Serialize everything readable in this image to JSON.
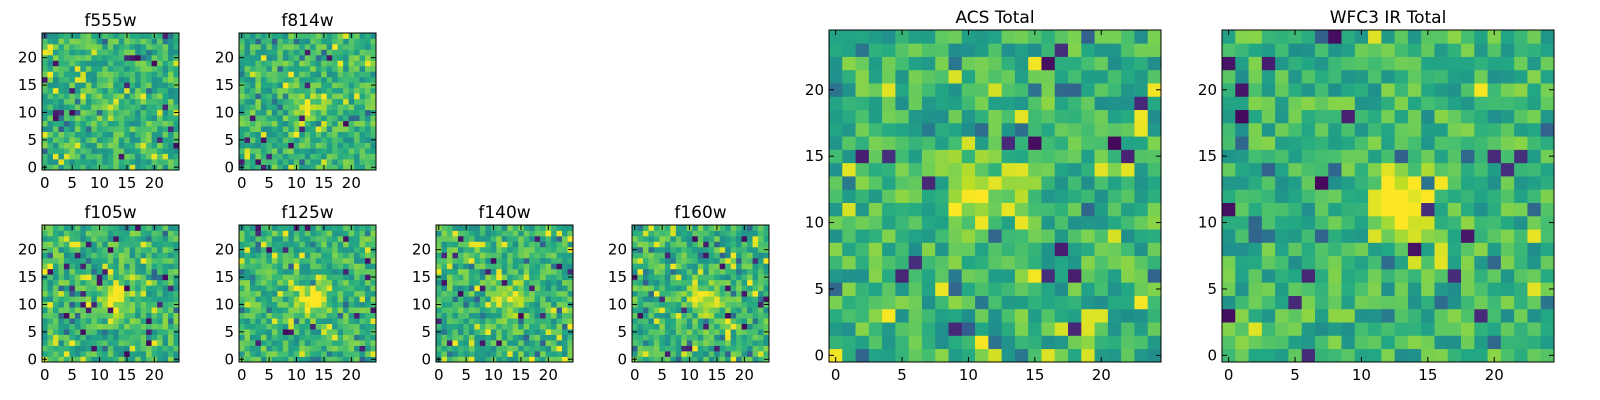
{
  "figure": {
    "description_colormap": "viridis"
  },
  "chart_data": [
    {
      "type": "heatmap",
      "title": "f555w",
      "xlabel": "",
      "ylabel": "",
      "grid_size": 25,
      "xlim": [
        0,
        24
      ],
      "ylim": [
        0,
        24
      ],
      "x_ticks": [
        0,
        5,
        10,
        15,
        20
      ],
      "y_ticks": [
        0,
        5,
        10,
        15,
        20
      ],
      "x_tick_labels": [
        "0",
        "5",
        "10",
        "15",
        "20"
      ],
      "y_tick_labels": [
        "0",
        "5",
        "10",
        "15",
        "20"
      ],
      "signal": {
        "center": [
          12,
          11
        ],
        "sigma": 1.5,
        "amplitude": 0.2
      },
      "noise_seed": 11,
      "dark_pixel_rate": 0.025,
      "bright_pixel_rate": 0.03,
      "colormap": "viridis"
    },
    {
      "type": "heatmap",
      "title": "f814w",
      "xlabel": "",
      "ylabel": "",
      "grid_size": 25,
      "xlim": [
        0,
        24
      ],
      "ylim": [
        0,
        24
      ],
      "x_ticks": [
        0,
        5,
        10,
        15,
        20
      ],
      "y_ticks": [
        0,
        5,
        10,
        15,
        20
      ],
      "x_tick_labels": [
        "0",
        "5",
        "10",
        "15",
        "20"
      ],
      "y_tick_labels": [
        "0",
        "5",
        "10",
        "15",
        "20"
      ],
      "signal": {
        "center": [
          12,
          11
        ],
        "sigma": 1.6,
        "amplitude": 0.3
      },
      "noise_seed": 23,
      "dark_pixel_rate": 0.02,
      "bright_pixel_rate": 0.03,
      "colormap": "viridis"
    },
    {
      "type": "heatmap",
      "title": "f105w",
      "xlabel": "",
      "ylabel": "",
      "grid_size": 25,
      "xlim": [
        0,
        24
      ],
      "ylim": [
        0,
        24
      ],
      "x_ticks": [
        0,
        5,
        10,
        15,
        20
      ],
      "y_ticks": [
        0,
        5,
        10,
        15,
        20
      ],
      "x_tick_labels": [
        "0",
        "5",
        "10",
        "15",
        "20"
      ],
      "y_tick_labels": [
        "0",
        "5",
        "10",
        "15",
        "20"
      ],
      "signal": {
        "center": [
          13,
          11
        ],
        "sigma": 2.0,
        "amplitude": 0.35
      },
      "noise_seed": 37,
      "dark_pixel_rate": 0.035,
      "bright_pixel_rate": 0.04,
      "colormap": "viridis"
    },
    {
      "type": "heatmap",
      "title": "f125w",
      "xlabel": "",
      "ylabel": "",
      "grid_size": 25,
      "xlim": [
        0,
        24
      ],
      "ylim": [
        0,
        24
      ],
      "x_ticks": [
        0,
        5,
        10,
        15,
        20
      ],
      "y_ticks": [
        0,
        5,
        10,
        15,
        20
      ],
      "x_tick_labels": [
        "0",
        "5",
        "10",
        "15",
        "20"
      ],
      "y_tick_labels": [
        "0",
        "5",
        "10",
        "15",
        "20"
      ],
      "signal": {
        "center": [
          13,
          11
        ],
        "sigma": 2.0,
        "amplitude": 0.35
      },
      "noise_seed": 41,
      "dark_pixel_rate": 0.03,
      "bright_pixel_rate": 0.04,
      "colormap": "viridis"
    },
    {
      "type": "heatmap",
      "title": "f140w",
      "xlabel": "",
      "ylabel": "",
      "grid_size": 25,
      "xlim": [
        0,
        24
      ],
      "ylim": [
        0,
        24
      ],
      "x_ticks": [
        0,
        5,
        10,
        15,
        20
      ],
      "y_ticks": [
        0,
        5,
        10,
        15,
        20
      ],
      "x_tick_labels": [
        "0",
        "5",
        "10",
        "15",
        "20"
      ],
      "y_tick_labels": [
        "0",
        "5",
        "10",
        "15",
        "20"
      ],
      "signal": {
        "center": [
          13,
          11
        ],
        "sigma": 2.0,
        "amplitude": 0.3
      },
      "noise_seed": 53,
      "dark_pixel_rate": 0.03,
      "bright_pixel_rate": 0.05,
      "colormap": "viridis"
    },
    {
      "type": "heatmap",
      "title": "f160w",
      "xlabel": "",
      "ylabel": "",
      "grid_size": 25,
      "xlim": [
        0,
        24
      ],
      "ylim": [
        0,
        24
      ],
      "x_ticks": [
        0,
        5,
        10,
        15,
        20
      ],
      "y_ticks": [
        0,
        5,
        10,
        15,
        20
      ],
      "x_tick_labels": [
        "0",
        "5",
        "10",
        "15",
        "20"
      ],
      "y_tick_labels": [
        "0",
        "5",
        "10",
        "15",
        "20"
      ],
      "signal": {
        "center": [
          13,
          11
        ],
        "sigma": 2.0,
        "amplitude": 0.3
      },
      "noise_seed": 67,
      "dark_pixel_rate": 0.035,
      "bright_pixel_rate": 0.05,
      "colormap": "viridis"
    },
    {
      "type": "heatmap",
      "title": "ACS Total",
      "xlabel": "",
      "ylabel": "",
      "grid_size": 25,
      "xlim": [
        0,
        24
      ],
      "ylim": [
        0,
        24
      ],
      "x_ticks": [
        0,
        5,
        10,
        15,
        20
      ],
      "y_ticks": [
        0,
        5,
        10,
        15,
        20
      ],
      "x_tick_labels": [
        "0",
        "5",
        "10",
        "15",
        "20"
      ],
      "y_tick_labels": [
        "0",
        "5",
        "10",
        "15",
        "20"
      ],
      "signal": {
        "center": [
          11,
          12
        ],
        "sigma": 1.8,
        "amplitude": 0.3
      },
      "noise_seed": 79,
      "dark_pixel_rate": 0.03,
      "bright_pixel_rate": 0.05,
      "colormap": "viridis"
    },
    {
      "type": "heatmap",
      "title": "WFC3 IR Total",
      "xlabel": "",
      "ylabel": "",
      "grid_size": 25,
      "xlim": [
        0,
        24
      ],
      "ylim": [
        0,
        24
      ],
      "x_ticks": [
        0,
        5,
        10,
        15,
        20
      ],
      "y_ticks": [
        0,
        5,
        10,
        15,
        20
      ],
      "x_tick_labels": [
        "0",
        "5",
        "10",
        "15",
        "20"
      ],
      "y_tick_labels": [
        "0",
        "5",
        "10",
        "15",
        "20"
      ],
      "signal": {
        "center": [
          13,
          12
        ],
        "sigma": 1.8,
        "amplitude": 0.45
      },
      "noise_seed": 97,
      "dark_pixel_rate": 0.03,
      "bright_pixel_rate": 0.03,
      "colormap": "viridis"
    }
  ]
}
